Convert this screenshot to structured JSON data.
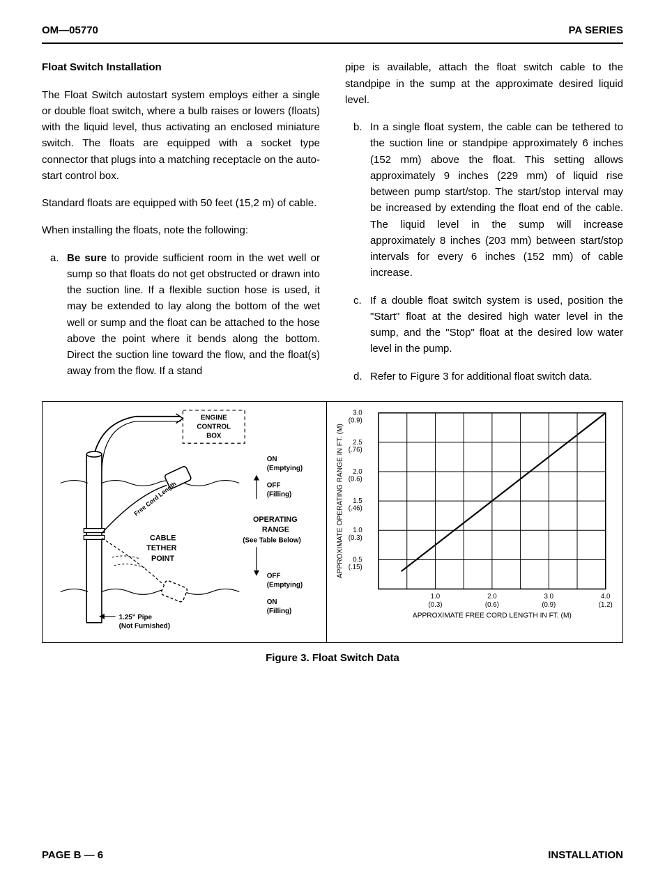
{
  "header": {
    "left": "OM—05770",
    "right": "PA SERIES"
  },
  "footer": {
    "left": "PAGE B — 6",
    "right": "INSTALLATION"
  },
  "content": {
    "section_title": "Float Switch Installation",
    "para1": "The Float Switch autostart system employs either a single or double float switch, where a bulb raises or lowers (floats) with the liquid level, thus activating an enclosed miniature switch. The floats are equipped with a socket type connector that plugs into a matching receptacle on the auto-start control box.",
    "para2": "Standard floats are equipped with  50 feet (15,2 m) of cable.",
    "para3": "When installing the floats, note the following:",
    "item_a_marker": "a.",
    "item_a_lead": "Be sure",
    "item_a_rest": " to provide sufficient room in the wet well or sump so that floats do not get obstructed or drawn into the suction line. If a flexible suction hose is used, it may be extended to lay along the bottom of the wet well or sump and the float can be attached to the hose above the point where it bends along the bottom. Direct the suction line toward the flow, and the float(s) away from the flow. If a stand",
    "col2_para1": "pipe is available, attach the float switch cable to the standpipe in the sump at the approximate desired liquid level.",
    "item_b_marker": "b.",
    "item_b_text": "In a single float system, the cable can be tethered to the suction line or standpipe approximately 6 inches (152 mm) above the float. This setting allows approximately 9 inches (229 mm) of liquid rise between pump start/stop. The start/stop interval may be increased by extending the float end of the cable. The liquid level in the sump will increase approximately 8 inches (203 mm) between start/stop intervals for every 6 inches (152 mm) of cable increase.",
    "item_c_marker": "c.",
    "item_c_text": "If a double float switch system is used, position the \"Start\" float at the desired high water level in the sump, and the \"Stop\" float at the desired low water level in the pump.",
    "item_d_marker": "d.",
    "item_d_text": "Refer to Figure 3 for additional float switch data."
  },
  "figure": {
    "caption": "Figure 3.  Float Switch Data",
    "diagram": {
      "engine_box_l1": "ENGINE",
      "engine_box_l2": "CONTROL",
      "engine_box_l3": "BOX",
      "on_emptying": "ON",
      "emptying": "(Emptying)",
      "off": "OFF",
      "filling": "(Filling)",
      "operating": "OPERATING",
      "range": "RANGE",
      "see_table": "(See Table Below)",
      "cable": "CABLE",
      "tether": "TETHER",
      "point": "POINT",
      "on2": "ON",
      "pipe_label": "1.25\" Pipe",
      "not_furnished": "(Not Furnished)",
      "free_cord": "Free Cord Length"
    },
    "chart": {
      "type": "line",
      "y_axis_label": "APPROXIMATE OPERATING RANGE IN FT. (M)",
      "x_axis_label": "APPROXIMATE FREE CORD LENGTH IN FT. (M)",
      "y_ticks": [
        {
          "ft": "3.0",
          "m": "(0.9)"
        },
        {
          "ft": "2.5",
          "m": "(.76)"
        },
        {
          "ft": "2.0",
          "m": "(0.6)"
        },
        {
          "ft": "1.5",
          "m": "(.46)"
        },
        {
          "ft": "1.0",
          "m": "(0.3)"
        },
        {
          "ft": "0.5",
          "m": "(.15)"
        }
      ],
      "x_ticks": [
        {
          "ft": "1.0",
          "m": "(0.3)"
        },
        {
          "ft": "2.0",
          "m": "(0.6)"
        },
        {
          "ft": "3.0",
          "m": "(0.9)"
        },
        {
          "ft": "4.0",
          "m": "(1.2)"
        }
      ],
      "line_points": [
        [
          0.4,
          0.3
        ],
        [
          4.0,
          3.0
        ]
      ],
      "xlim": [
        0,
        4.0
      ],
      "ylim": [
        0,
        3.0
      ],
      "grid_color": "#000000",
      "line_color": "#000000",
      "line_width": 2.2,
      "grid_width": 1,
      "background_color": "#ffffff"
    }
  }
}
